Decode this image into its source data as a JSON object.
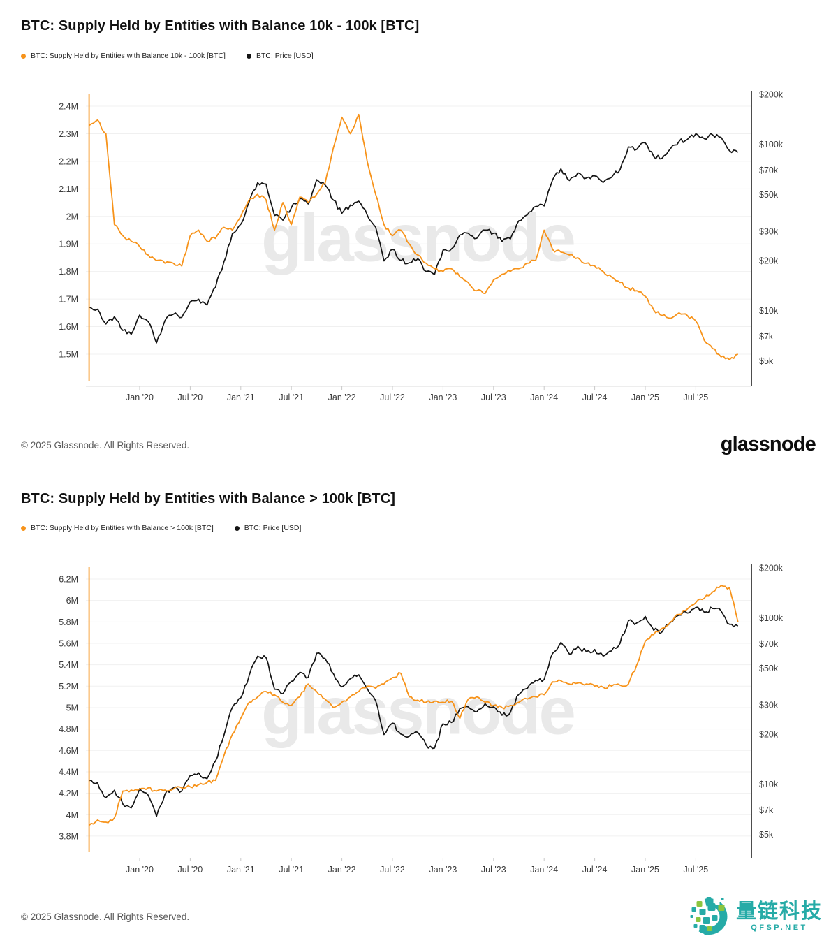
{
  "page": {
    "background": "#ffffff"
  },
  "colors": {
    "supply_line": "#f7931a",
    "price_line": "#141414",
    "gridline": "#f0f0f0",
    "axis_text": "#3b3b3b",
    "right_spine": "#4d4d4d",
    "watermark": "#e9e9e9",
    "qfsp_teal": "#26aba7",
    "qfsp_green": "#8bc53f"
  },
  "charts": [
    {
      "title": "BTC: Supply Held by Entities with Balance 10k - 100k [BTC]",
      "legend": [
        {
          "label": "BTC: Supply Held by Entities with Balance 10k - 100k [BTC]",
          "color": "#f7931a"
        },
        {
          "label": "BTC: Price [USD]",
          "color": "#141414"
        }
      ]
    },
    {
      "title": "BTC: Supply Held by Entities with Balance > 100k [BTC]",
      "legend": [
        {
          "label": "BTC: Supply Held by Entities with Balance > 100k [BTC]",
          "color": "#f7931a"
        },
        {
          "label": "BTC: Price [USD]",
          "color": "#141414"
        }
      ]
    }
  ],
  "footers": [
    {
      "copyright": "© 2025 Glassnode. All Rights Reserved.",
      "brand": "glassnode"
    },
    {
      "copyright": "© 2025 Glassnode. All Rights Reserved.",
      "logo": {
        "text": "量链科技",
        "subtext": "QFSP.NET"
      }
    }
  ],
  "chart_data": [
    {
      "type": "line",
      "title": "BTC: Supply Held by Entities with Balance 10k - 100k [BTC]",
      "watermark": "glassnode",
      "x_start": "2019-07",
      "x_interval": "monthly",
      "x_tick_labels": [
        "Jan '20",
        "Jul '20",
        "Jan '21",
        "Jul '21",
        "Jan '22",
        "Jul '22",
        "Jan '23",
        "Jul '23",
        "Jan '24",
        "Jul '24",
        "Jan '25",
        "Jul '25"
      ],
      "x_tick_positions": [
        2020.0,
        2020.5,
        2021.0,
        2021.5,
        2022.0,
        2022.5,
        2023.0,
        2023.5,
        2024.0,
        2024.5,
        2025.0,
        2025.5
      ],
      "left_axis": {
        "unit": "BTC (millions)",
        "scale": "linear",
        "tick_labels": [
          "2.4M",
          "2.3M",
          "2.2M",
          "2.1M",
          "2M",
          "1.9M",
          "1.8M",
          "1.7M",
          "1.6M",
          "1.5M"
        ],
        "tick_values": [
          2.4,
          2.3,
          2.2,
          2.1,
          2.0,
          1.9,
          1.8,
          1.7,
          1.6,
          1.5
        ]
      },
      "right_axis": {
        "unit": "USD",
        "scale": "log",
        "tick_labels": [
          "$200k",
          "$100k",
          "$70k",
          "$50k",
          "$30k",
          "$20k",
          "$10k",
          "$7k",
          "$5k"
        ],
        "tick_values": [
          200000,
          100000,
          70000,
          50000,
          30000,
          20000,
          10000,
          7000,
          5000
        ]
      },
      "series": [
        {
          "name": "BTC: Supply Held by Entities with Balance 10k - 100k [BTC]",
          "axis": "left",
          "color": "#f7931a",
          "unit": "million BTC",
          "values": [
            2.33,
            2.35,
            2.3,
            1.97,
            1.93,
            1.91,
            1.89,
            1.86,
            1.84,
            1.83,
            1.83,
            1.82,
            1.93,
            1.95,
            1.91,
            1.92,
            1.96,
            1.95,
            2.0,
            2.06,
            2.08,
            2.06,
            1.95,
            2.05,
            1.97,
            2.07,
            2.05,
            2.08,
            2.12,
            2.25,
            2.36,
            2.3,
            2.37,
            2.2,
            2.08,
            1.97,
            1.93,
            1.95,
            1.9,
            1.86,
            1.83,
            1.81,
            1.8,
            1.81,
            1.78,
            1.76,
            1.73,
            1.72,
            1.77,
            1.79,
            1.8,
            1.81,
            1.83,
            1.84,
            1.95,
            1.88,
            1.87,
            1.86,
            1.85,
            1.83,
            1.82,
            1.8,
            1.78,
            1.76,
            1.74,
            1.73,
            1.71,
            1.66,
            1.64,
            1.63,
            1.65,
            1.64,
            1.62,
            1.55,
            1.52,
            1.49,
            1.48,
            1.5
          ]
        },
        {
          "name": "BTC: Price [USD]",
          "axis": "right",
          "color": "#141414",
          "unit": "USD",
          "values": [
            10500,
            10200,
            8300,
            9200,
            7600,
            7200,
            9400,
            8600,
            6400,
            8700,
            9500,
            9100,
            11300,
            11700,
            10800,
            13800,
            19700,
            29000,
            33100,
            45200,
            58800,
            57700,
            37300,
            35000,
            41500,
            47100,
            43800,
            61300,
            57000,
            46200,
            38500,
            43200,
            45500,
            37600,
            31800,
            19900,
            23300,
            20000,
            19400,
            20500,
            17200,
            16500,
            23100,
            23500,
            28500,
            29200,
            27200,
            30500,
            29200,
            26000,
            27000,
            34700,
            37700,
            42300,
            42600,
            61200,
            71300,
            60600,
            67500,
            62700,
            64600,
            59000,
            63300,
            70200,
            96400,
            93400,
            102100,
            84400,
            82500,
            94200,
            104000,
            107100,
            115800,
            108200,
            114000,
            110100,
            91500,
            89500
          ]
        }
      ]
    },
    {
      "type": "line",
      "title": "BTC: Supply Held by Entities with Balance > 100k [BTC]",
      "watermark": "glassnode",
      "x_start": "2019-07",
      "x_interval": "monthly",
      "x_tick_labels": [
        "Jan '20",
        "Jul '20",
        "Jan '21",
        "Jul '21",
        "Jan '22",
        "Jul '22",
        "Jan '23",
        "Jul '23",
        "Jan '24",
        "Jul '24",
        "Jan '25",
        "Jul '25"
      ],
      "x_tick_positions": [
        2020.0,
        2020.5,
        2021.0,
        2021.5,
        2022.0,
        2022.5,
        2023.0,
        2023.5,
        2024.0,
        2024.5,
        2025.0,
        2025.5
      ],
      "left_axis": {
        "unit": "BTC (millions)",
        "scale": "linear",
        "tick_labels": [
          "6.2M",
          "6M",
          "5.8M",
          "5.6M",
          "5.4M",
          "5.2M",
          "5M",
          "4.8M",
          "4.6M",
          "4.4M",
          "4.2M",
          "4M",
          "3.8M"
        ],
        "tick_values": [
          6.2,
          6.0,
          5.8,
          5.6,
          5.4,
          5.2,
          5.0,
          4.8,
          4.6,
          4.4,
          4.2,
          4.0,
          3.8
        ]
      },
      "right_axis": {
        "unit": "USD",
        "scale": "log",
        "tick_labels": [
          "$200k",
          "$100k",
          "$70k",
          "$50k",
          "$30k",
          "$20k",
          "$10k",
          "$7k",
          "$5k"
        ],
        "tick_values": [
          200000,
          100000,
          70000,
          50000,
          30000,
          20000,
          10000,
          7000,
          5000
        ]
      },
      "series": [
        {
          "name": "BTC: Supply Held by Entities with Balance > 100k [BTC]",
          "axis": "left",
          "color": "#f7931a",
          "unit": "million BTC",
          "values": [
            3.9,
            3.95,
            3.93,
            3.97,
            4.22,
            4.23,
            4.24,
            4.25,
            4.22,
            4.23,
            4.24,
            4.25,
            4.26,
            4.28,
            4.3,
            4.32,
            4.55,
            4.75,
            4.9,
            5.05,
            5.1,
            5.15,
            5.12,
            5.05,
            5.02,
            5.1,
            5.22,
            5.15,
            5.08,
            5.0,
            5.05,
            5.1,
            5.15,
            5.2,
            5.18,
            5.22,
            5.28,
            5.32,
            5.1,
            5.07,
            5.05,
            5.06,
            5.05,
            5.06,
            4.9,
            5.08,
            5.1,
            5.05,
            5.02,
            5.0,
            5.02,
            5.05,
            5.08,
            5.1,
            5.12,
            5.24,
            5.25,
            5.22,
            5.23,
            5.22,
            5.2,
            5.19,
            5.2,
            5.21,
            5.22,
            5.4,
            5.62,
            5.68,
            5.74,
            5.8,
            5.87,
            5.92,
            5.98,
            6.02,
            6.08,
            6.14,
            6.12,
            5.8
          ]
        },
        {
          "name": "BTC: Price [USD]",
          "axis": "right",
          "color": "#141414",
          "unit": "USD",
          "values": [
            10500,
            10200,
            8300,
            9200,
            7600,
            7200,
            9400,
            8600,
            6400,
            8700,
            9500,
            9100,
            11300,
            11700,
            10800,
            13800,
            19700,
            29000,
            33100,
            45200,
            58800,
            57700,
            37300,
            35000,
            41500,
            47100,
            43800,
            61300,
            57000,
            46200,
            38500,
            43200,
            45500,
            37600,
            31800,
            19900,
            23300,
            20000,
            19400,
            20500,
            17200,
            16500,
            23100,
            23500,
            28500,
            29200,
            27200,
            30500,
            29200,
            26000,
            27000,
            34700,
            37700,
            42300,
            42600,
            61200,
            71300,
            60600,
            67500,
            62700,
            64600,
            59000,
            63300,
            70200,
            96400,
            93400,
            102100,
            84400,
            82500,
            94200,
            104000,
            107100,
            115800,
            108200,
            114000,
            110100,
            91500,
            89500
          ]
        }
      ]
    }
  ]
}
